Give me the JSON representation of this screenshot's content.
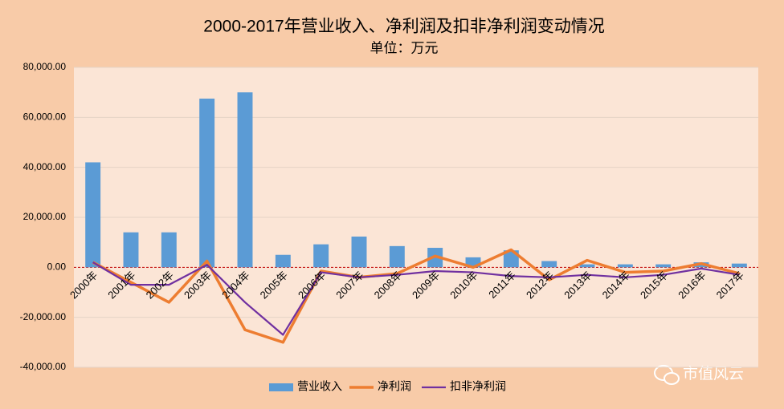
{
  "chart_data": {
    "type": "bar_line",
    "title": "2000-2017年营业收入、净利润及扣非净利润变动情况",
    "subtitle": "单位：万元",
    "categories": [
      "2000年",
      "2001年",
      "2002年",
      "2003年",
      "2004年",
      "2005年",
      "2006年",
      "2007年",
      "2008年",
      "2009年",
      "2010年",
      "2011年",
      "2012年",
      "2013年",
      "2014年",
      "2015年",
      "2016年",
      "2017年"
    ],
    "series": [
      {
        "name": "营业收入",
        "type": "bar",
        "color": "#5b9bd5",
        "values": [
          42000,
          14000,
          14000,
          67500,
          70000,
          5000,
          9200,
          12300,
          8500,
          7800,
          4000,
          6800,
          2500,
          1200,
          1200,
          1200,
          2000,
          1500
        ]
      },
      {
        "name": "净利润",
        "type": "line",
        "color": "#ed7d31",
        "values": [
          2000,
          -6000,
          -14000,
          2500,
          -25000,
          -30000,
          -1500,
          -4000,
          -2500,
          4500,
          0,
          7000,
          -5000,
          2800,
          -2000,
          -1500,
          1500,
          -2500
        ]
      },
      {
        "name": "扣非净利润",
        "type": "line",
        "color": "#7030a0",
        "values": [
          2000,
          -7000,
          -7000,
          1000,
          -14000,
          -27000,
          -2000,
          -4000,
          -3000,
          -1500,
          -2000,
          -3500,
          -4000,
          -3000,
          -4000,
          -3000,
          -500,
          -3000
        ]
      }
    ],
    "ylim": [
      -40000,
      80000
    ],
    "yticks": [
      {
        "value": -40000,
        "label": "-40,000.00"
      },
      {
        "value": -20000,
        "label": "-20,000.00"
      },
      {
        "value": 0,
        "label": "0.00"
      },
      {
        "value": 20000,
        "label": "20,000.00"
      },
      {
        "value": 40000,
        "label": "40,000.00"
      },
      {
        "value": 60000,
        "label": "60,000.00"
      },
      {
        "value": 80000,
        "label": "80,000.00"
      }
    ],
    "grid": true,
    "zero_line_color": "#c00000",
    "legend": "bottom",
    "watermark": "市值风云"
  }
}
